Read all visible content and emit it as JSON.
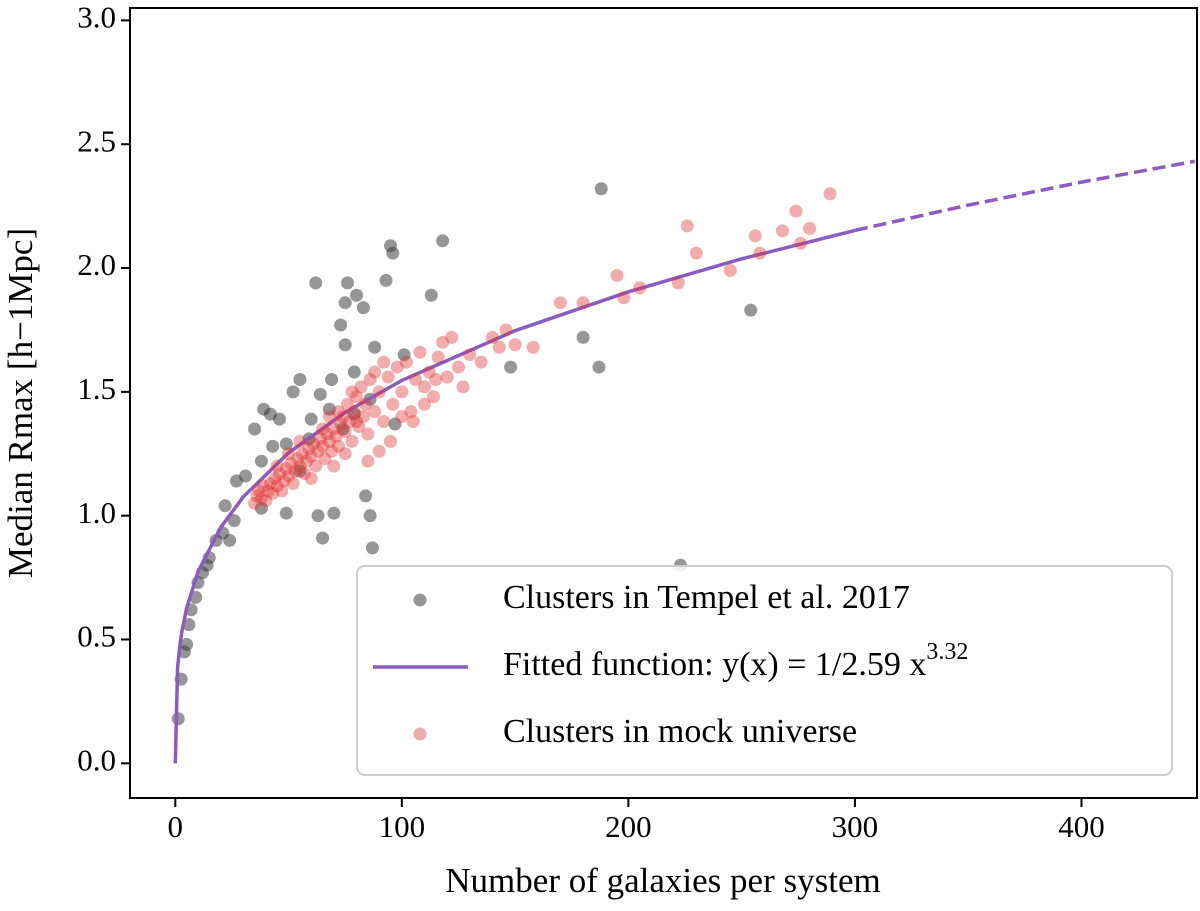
{
  "chart_data": {
    "type": "scatter",
    "xlabel": "Number of galaxies per system",
    "ylabel": "Median Rmax [h−1Mpc]",
    "xlim": [
      -20,
      451
    ],
    "ylim": [
      -0.14,
      3.05
    ],
    "xticks": [
      0,
      100,
      200,
      300,
      400
    ],
    "yticks": [
      {
        "value": 0,
        "label": "0.0"
      },
      {
        "value": 0.5,
        "label": "0.5"
      },
      {
        "value": 1,
        "label": "1.0"
      },
      {
        "value": 1.5,
        "label": "1.5"
      },
      {
        "value": 2,
        "label": "2.0"
      },
      {
        "value": 2.5,
        "label": "2.5"
      },
      {
        "value": 3,
        "label": "3.0"
      }
    ],
    "legend": "lower right",
    "series": [
      {
        "name": "Clusters in Tempel et al. 2017",
        "mode": "markers",
        "color": "#404040",
        "opacity": 0.55,
        "x": [
          1.3,
          2.6,
          4,
          5,
          6,
          7,
          9,
          10,
          12,
          14,
          15,
          18,
          21,
          24,
          26,
          22,
          27,
          31,
          35,
          39,
          42,
          46,
          38,
          43,
          49,
          38,
          55,
          60,
          63,
          65,
          70,
          62,
          69,
          73,
          75,
          76,
          75,
          79,
          80,
          83,
          84,
          86,
          87,
          88,
          93,
          95,
          96,
          97,
          101,
          113,
          118,
          148,
          180,
          187,
          188,
          223,
          254,
          55,
          52,
          49,
          64,
          68,
          74,
          79,
          86,
          59
        ],
        "values": [
          0.18,
          0.34,
          0.45,
          0.48,
          0.56,
          0.62,
          0.67,
          0.73,
          0.77,
          0.8,
          0.83,
          0.9,
          0.93,
          0.9,
          0.98,
          1.04,
          1.14,
          1.16,
          1.35,
          1.43,
          1.41,
          1.39,
          1.22,
          1.28,
          1.01,
          1.03,
          1.18,
          1.39,
          1.0,
          0.91,
          1.01,
          1.94,
          1.55,
          1.77,
          1.86,
          1.94,
          1.69,
          1.58,
          1.89,
          1.84,
          1.08,
          1.0,
          0.87,
          1.68,
          1.95,
          2.09,
          2.06,
          1.37,
          1.65,
          1.89,
          2.11,
          1.6,
          1.72,
          1.6,
          2.32,
          0.8,
          1.83,
          1.55,
          1.5,
          1.29,
          1.49,
          1.43,
          1.35,
          1.41,
          1.47,
          1.31
        ]
      },
      {
        "name": "Fitted function: y(x) = 1/2.59 x^3.32",
        "mode": "line",
        "color": "#8a5cc2",
        "dash": false,
        "x": [
          0,
          1,
          2,
          3,
          5,
          10,
          20,
          30,
          50,
          75,
          100,
          150,
          200,
          250,
          300
        ],
        "values": [
          0,
          0.386,
          0.476,
          0.537,
          0.627,
          0.773,
          0.952,
          1.076,
          1.254,
          1.417,
          1.546,
          1.747,
          1.904,
          2.037,
          2.152
        ]
      },
      {
        "mode": "line",
        "color": "#8a5cc2",
        "dash": true,
        "x": [
          300,
          350,
          400,
          450
        ],
        "values": [
          2.152,
          2.254,
          2.347,
          2.431
        ]
      },
      {
        "name": "Clusters in mock universe",
        "mode": "markers",
        "color": "#e03030",
        "opacity": 0.4,
        "x": [
          35,
          36,
          37,
          38,
          39,
          40,
          41,
          42,
          43,
          44,
          45,
          46,
          47,
          48,
          49,
          50,
          51,
          52,
          53,
          54,
          55,
          56,
          57,
          58,
          59,
          60,
          61,
          62,
          63,
          64,
          65,
          66,
          67,
          68,
          69,
          70,
          71,
          72,
          73,
          74,
          75,
          76,
          77,
          78,
          79,
          80,
          81,
          82,
          83,
          84,
          85,
          86,
          88,
          90,
          92,
          94,
          96,
          98,
          100,
          102,
          104,
          106,
          108,
          110,
          112,
          114,
          116,
          118,
          120,
          122,
          125,
          127,
          130,
          135,
          140,
          143,
          146,
          150,
          158,
          170,
          180,
          195,
          198,
          205,
          222,
          226,
          230,
          245,
          256,
          258,
          268,
          274,
          276,
          280,
          289,
          60,
          65,
          70,
          75,
          80,
          85,
          90,
          55,
          50,
          45,
          68,
          72,
          78,
          88,
          95,
          100,
          110,
          92,
          105,
          115
        ],
        "values": [
          1.05,
          1.08,
          1.1,
          1.07,
          1.12,
          1.06,
          1.1,
          1.13,
          1.09,
          1.15,
          1.12,
          1.17,
          1.1,
          1.14,
          1.19,
          1.16,
          1.21,
          1.13,
          1.18,
          1.23,
          1.2,
          1.25,
          1.17,
          1.22,
          1.27,
          1.24,
          1.29,
          1.2,
          1.26,
          1.31,
          1.28,
          1.23,
          1.33,
          1.3,
          1.26,
          1.35,
          1.32,
          1.28,
          1.37,
          1.4,
          1.34,
          1.45,
          1.38,
          1.3,
          1.42,
          1.48,
          1.36,
          1.52,
          1.4,
          1.45,
          1.33,
          1.55,
          1.42,
          1.5,
          1.38,
          1.56,
          1.45,
          1.6,
          1.5,
          1.62,
          1.42,
          1.55,
          1.66,
          1.52,
          1.58,
          1.48,
          1.64,
          1.7,
          1.56,
          1.72,
          1.6,
          1.52,
          1.65,
          1.62,
          1.72,
          1.68,
          1.75,
          1.69,
          1.68,
          1.86,
          1.86,
          1.97,
          1.88,
          1.92,
          1.94,
          2.17,
          2.06,
          1.99,
          2.13,
          2.06,
          2.15,
          2.23,
          2.1,
          2.16,
          2.3,
          1.15,
          1.35,
          1.2,
          1.25,
          1.38,
          1.22,
          1.26,
          1.3,
          1.25,
          1.2,
          1.4,
          1.42,
          1.5,
          1.58,
          1.3,
          1.4,
          1.45,
          1.62,
          1.38,
          1.55
        ]
      }
    ]
  }
}
